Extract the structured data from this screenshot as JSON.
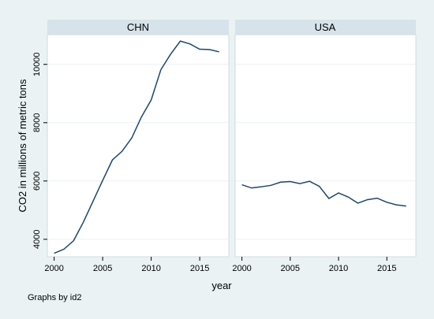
{
  "chart_data": {
    "type": "line",
    "ylabel": "CO2 in millions of metric tons",
    "xlabel": "year",
    "note": "Graphs by id2",
    "xlim": [
      1999.3,
      2018.0
    ],
    "ylim": [
      3400,
      11020
    ],
    "x_ticks": [
      2000,
      2005,
      2010,
      2015
    ],
    "y_ticks": [
      4000,
      6000,
      8000,
      10000
    ],
    "colors": {
      "background": "#eaf2f3",
      "plot_area": "#ffffff",
      "strip": "#d7e3ea",
      "line": "#1a476f",
      "frame": "#cfdbe1"
    },
    "panels": [
      {
        "title": "CHN",
        "x": [
          2000,
          2001,
          2002,
          2003,
          2004,
          2005,
          2006,
          2007,
          2008,
          2009,
          2010,
          2011,
          2012,
          2013,
          2014,
          2015,
          2016,
          2017
        ],
        "y": [
          3520,
          3660,
          3950,
          4580,
          5300,
          6020,
          6720,
          7020,
          7480,
          8200,
          8780,
          9820,
          10350,
          10800,
          10700,
          10520,
          10510,
          10430
        ]
      },
      {
        "title": "USA",
        "x": [
          2000,
          2001,
          2002,
          2003,
          2004,
          2005,
          2006,
          2007,
          2008,
          2009,
          2010,
          2011,
          2012,
          2013,
          2014,
          2015,
          2016,
          2017
        ],
        "y": [
          5870,
          5760,
          5800,
          5850,
          5960,
          5980,
          5910,
          5990,
          5820,
          5400,
          5590,
          5450,
          5240,
          5360,
          5410,
          5270,
          5180,
          5140
        ]
      }
    ]
  }
}
